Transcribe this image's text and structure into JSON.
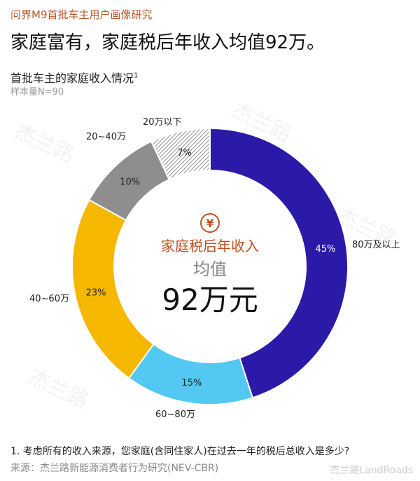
{
  "header": {
    "kicker": "问界M9首批车主用户画像研究",
    "title": "家庭富有，家庭税后年收入均值92万。",
    "subtitle": "首批车主的家庭收入情况",
    "subtitle_sup": "1",
    "sample": "样本量N=90"
  },
  "center": {
    "icon": "yen-icon",
    "label": "家庭税后年收入",
    "stat": "均值",
    "value": "92万元"
  },
  "chart_data": {
    "type": "pie",
    "donut": true,
    "start": "top, clockwise",
    "categories": [
      "80万及以上",
      "60~80万",
      "40~60万",
      "20~40万",
      "20万以下"
    ],
    "values": [
      45,
      15,
      23,
      10,
      7
    ],
    "labels": [
      "45%",
      "15%",
      "23%",
      "10%",
      "7%"
    ],
    "colors": [
      "#2b1aa8",
      "#52c8f2",
      "#f5b700",
      "#8e8e8e",
      "hatched-gray"
    ]
  },
  "footer": {
    "footnote": "1.    考虑所有的收入来源，您家庭(含同住家人)在过去一年的税后总收入是多少?",
    "source": "来源：杰兰路新能源消费者行为研究(NEV-CBR)",
    "brand": "杰兰路LandRoads"
  }
}
